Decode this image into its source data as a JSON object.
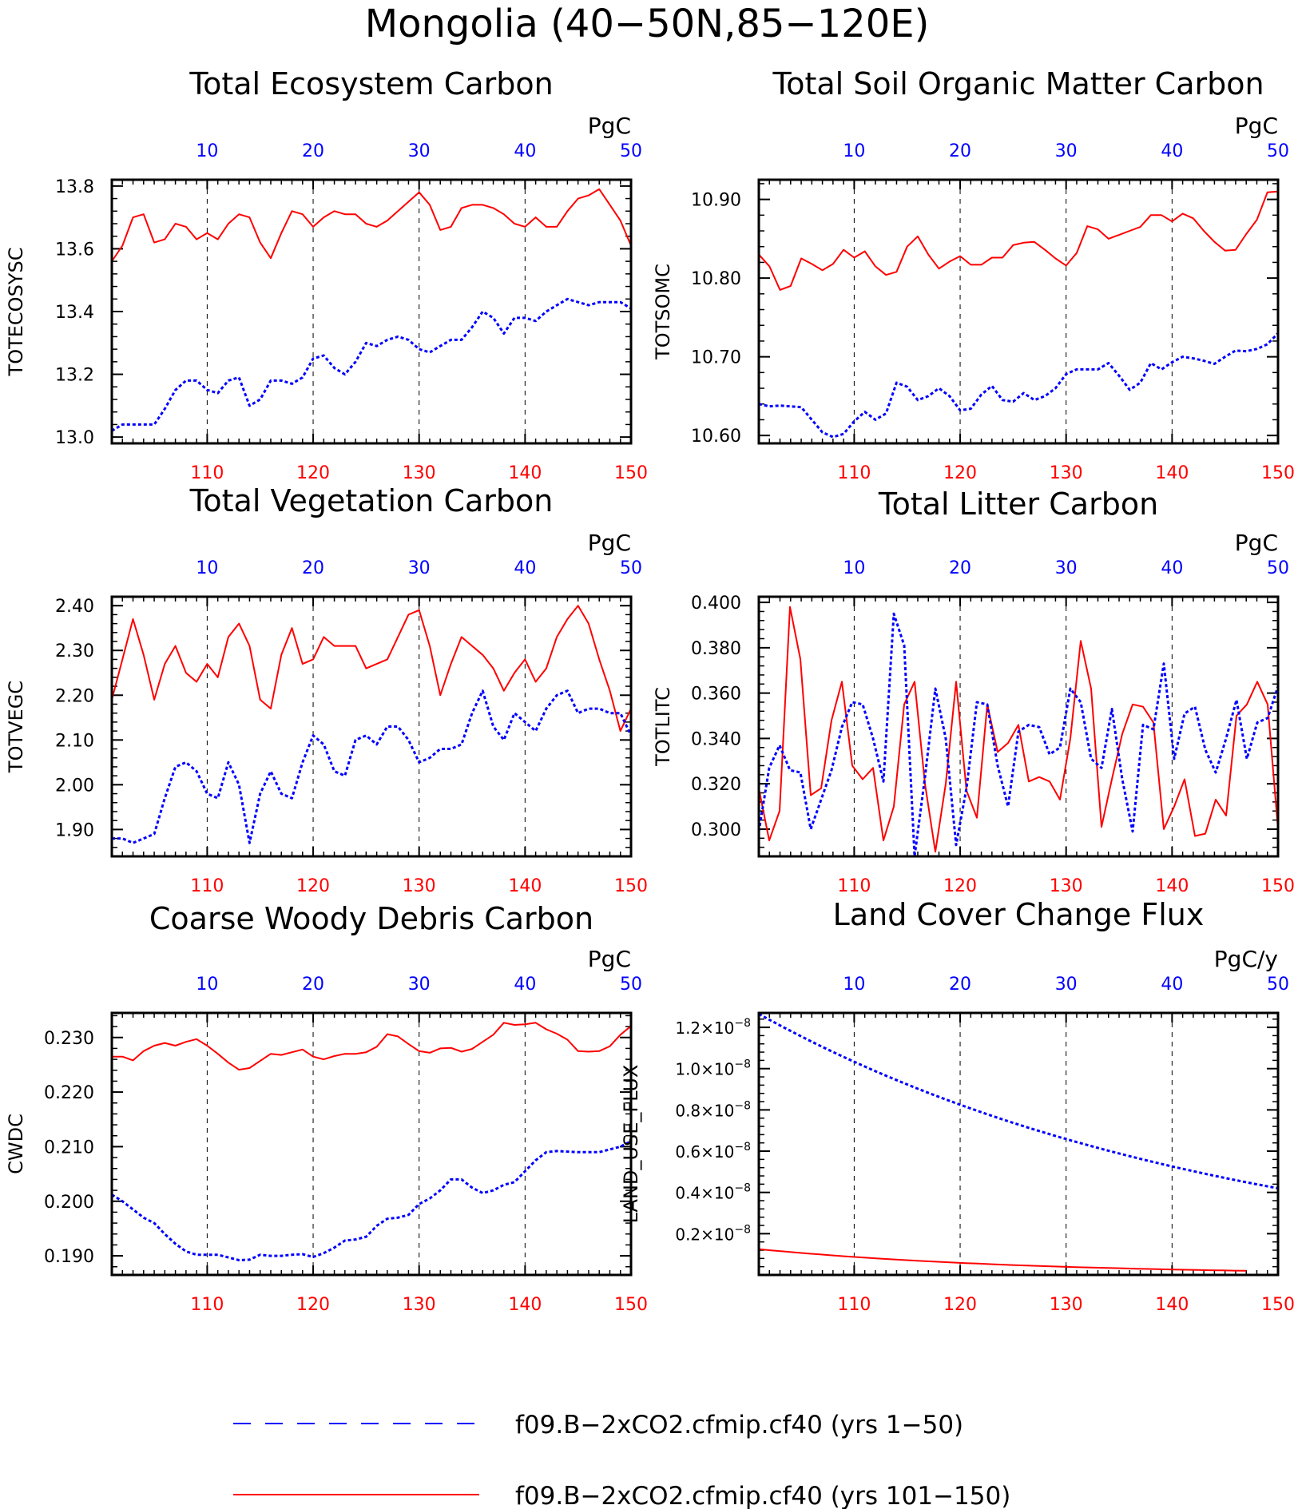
{
  "title": "Mongolia (40−50N,85−120E)",
  "colors": {
    "series_a": "#0000ff",
    "series_b": "#ff0000",
    "axis": "#000000"
  },
  "legend": [
    {
      "label": "f09.B−2xCO2.cfmip.cf40 (yrs 1−50)",
      "color": "#0000ff",
      "style": "dashed"
    },
    {
      "label": "f09.B−2xCO2.cfmip.cf40 (yrs 101−150)",
      "color": "#ff0000",
      "style": "solid"
    }
  ],
  "chart_data": [
    {
      "type": "line",
      "title": "Total Ecosystem Carbon",
      "ylabel": "TOTECOSYSC",
      "units": "PgC",
      "bottom_axis": {
        "range": [
          101,
          150
        ],
        "ticks": [
          "110",
          "120",
          "130",
          "140",
          "150"
        ]
      },
      "top_axis": {
        "range": [
          1,
          50
        ],
        "ticks": [
          "10",
          "20",
          "30",
          "40",
          "50"
        ]
      },
      "ylim": [
        12.98,
        13.82
      ],
      "yticks": [
        "13.0",
        "13.2",
        "13.4",
        "13.6",
        "13.8"
      ],
      "ytick_values": [
        13.0,
        13.2,
        13.4,
        13.6,
        13.8
      ],
      "series": [
        {
          "axis": "bottom",
          "style": "solid",
          "color": "#ff0000",
          "values": [
            13.56,
            13.61,
            13.7,
            13.71,
            13.62,
            13.63,
            13.68,
            13.67,
            13.63,
            13.65,
            13.63,
            13.68,
            13.71,
            13.7,
            13.62,
            13.57,
            13.65,
            13.72,
            13.71,
            13.67,
            13.7,
            13.72,
            13.71,
            13.71,
            13.68,
            13.67,
            13.69,
            13.72,
            13.75,
            13.78,
            13.74,
            13.66,
            13.67,
            13.73,
            13.74,
            13.74,
            13.73,
            13.71,
            13.68,
            13.67,
            13.7,
            13.67,
            13.67,
            13.72,
            13.76,
            13.77,
            13.79,
            13.74,
            13.69,
            13.61
          ]
        },
        {
          "axis": "top",
          "style": "dashed",
          "color": "#0000ff",
          "values": [
            13.02,
            13.04,
            13.04,
            13.04,
            13.04,
            13.09,
            13.15,
            13.18,
            13.18,
            13.15,
            13.14,
            13.18,
            13.19,
            13.1,
            13.12,
            13.18,
            13.18,
            13.17,
            13.19,
            13.25,
            13.26,
            13.22,
            13.2,
            13.24,
            13.3,
            13.29,
            13.31,
            13.32,
            13.31,
            13.28,
            13.27,
            13.29,
            13.31,
            13.31,
            13.35,
            13.4,
            13.38,
            13.33,
            13.38,
            13.38,
            13.37,
            13.4,
            13.42,
            13.44,
            13.43,
            13.42,
            13.43,
            13.43,
            13.43,
            13.41
          ]
        }
      ]
    },
    {
      "type": "line",
      "title": "Total Soil Organic Matter Carbon",
      "ylabel": "TOTSOMC",
      "units": "PgC",
      "bottom_axis": {
        "range": [
          101,
          150
        ],
        "ticks": [
          "110",
          "120",
          "130",
          "140",
          "150"
        ]
      },
      "top_axis": {
        "range": [
          1,
          50
        ],
        "ticks": [
          "10",
          "20",
          "30",
          "40",
          "50"
        ]
      },
      "ylim": [
        10.59,
        10.925
      ],
      "yticks": [
        "10.60",
        "10.70",
        "10.80",
        "10.90"
      ],
      "ytick_values": [
        10.6,
        10.7,
        10.8,
        10.9
      ],
      "series": [
        {
          "axis": "bottom",
          "style": "solid",
          "color": "#ff0000",
          "values": [
            10.83,
            10.815,
            10.785,
            10.79,
            10.825,
            10.818,
            10.81,
            10.818,
            10.836,
            10.826,
            10.834,
            10.815,
            10.804,
            10.808,
            10.84,
            10.853,
            10.83,
            10.812,
            10.821,
            10.828,
            10.817,
            10.817,
            10.826,
            10.826,
            10.842,
            10.845,
            10.846,
            10.836,
            10.825,
            10.816,
            10.832,
            10.866,
            10.862,
            10.85,
            10.855,
            10.86,
            10.865,
            10.88,
            10.88,
            10.872,
            10.882,
            10.876,
            10.86,
            10.846,
            10.835,
            10.836,
            10.856,
            10.874,
            10.909,
            10.91
          ]
        },
        {
          "axis": "top",
          "style": "dashed",
          "color": "#0000ff",
          "values": [
            10.64,
            10.637,
            10.638,
            10.637,
            10.636,
            10.62,
            10.604,
            10.598,
            10.602,
            10.618,
            10.63,
            10.62,
            10.628,
            10.667,
            10.662,
            10.645,
            10.65,
            10.66,
            10.65,
            10.632,
            10.634,
            10.652,
            10.663,
            10.645,
            10.643,
            10.654,
            10.645,
            10.65,
            10.66,
            10.678,
            10.684,
            10.684,
            10.684,
            10.692,
            10.676,
            10.658,
            10.667,
            10.692,
            10.684,
            10.693,
            10.7,
            10.698,
            10.695,
            10.691,
            10.7,
            10.708,
            10.707,
            10.71,
            10.716,
            10.73
          ]
        }
      ]
    },
    {
      "type": "line",
      "title": "Total Vegetation Carbon",
      "ylabel": "TOTVEGC",
      "units": "PgC",
      "bottom_axis": {
        "range": [
          101,
          150
        ],
        "ticks": [
          "110",
          "120",
          "130",
          "140",
          "150"
        ]
      },
      "top_axis": {
        "range": [
          1,
          50
        ],
        "ticks": [
          "10",
          "20",
          "30",
          "40",
          "50"
        ]
      },
      "ylim": [
        1.84,
        2.42
      ],
      "yticks": [
        "1.90",
        "2.00",
        "2.10",
        "2.20",
        "2.30",
        "2.40"
      ],
      "ytick_values": [
        1.9,
        2.0,
        2.1,
        2.2,
        2.3,
        2.4
      ],
      "series": [
        {
          "axis": "bottom",
          "style": "solid",
          "color": "#ff0000",
          "values": [
            2.19,
            2.28,
            2.37,
            2.29,
            2.19,
            2.27,
            2.31,
            2.25,
            2.23,
            2.27,
            2.24,
            2.33,
            2.36,
            2.31,
            2.19,
            2.17,
            2.29,
            2.35,
            2.27,
            2.28,
            2.33,
            2.31,
            2.31,
            2.31,
            2.26,
            2.27,
            2.28,
            2.33,
            2.38,
            2.39,
            2.31,
            2.2,
            2.27,
            2.33,
            2.31,
            2.29,
            2.26,
            2.21,
            2.25,
            2.28,
            2.23,
            2.26,
            2.33,
            2.37,
            2.4,
            2.36,
            2.28,
            2.21,
            2.12,
            2.17
          ]
        },
        {
          "axis": "top",
          "style": "dashed",
          "color": "#0000ff",
          "values": [
            1.88,
            1.88,
            1.87,
            1.88,
            1.89,
            1.97,
            2.04,
            2.05,
            2.03,
            1.98,
            1.97,
            2.05,
            2.0,
            1.87,
            1.98,
            2.03,
            1.98,
            1.97,
            2.05,
            2.11,
            2.09,
            2.03,
            2.02,
            2.1,
            2.11,
            2.09,
            2.13,
            2.13,
            2.1,
            2.05,
            2.06,
            2.08,
            2.08,
            2.09,
            2.16,
            2.21,
            2.13,
            2.1,
            2.16,
            2.14,
            2.12,
            2.17,
            2.2,
            2.21,
            2.16,
            2.17,
            2.17,
            2.16,
            2.16,
            2.11
          ]
        }
      ]
    },
    {
      "type": "line",
      "title": "Total Litter Carbon",
      "ylabel": "TOTLITC",
      "units": "PgC",
      "bottom_axis": {
        "range": [
          101,
          150
        ],
        "ticks": [
          "110",
          "120",
          "130",
          "140",
          "150"
        ]
      },
      "top_axis": {
        "range": [
          1,
          50
        ],
        "ticks": [
          "10",
          "20",
          "30",
          "40",
          "50"
        ]
      },
      "ylim": [
        0.288,
        0.4025
      ],
      "yticks": [
        "0.300",
        "0.320",
        "0.340",
        "0.360",
        "0.380",
        "0.400"
      ],
      "ytick_values": [
        0.3,
        0.32,
        0.34,
        0.36,
        0.38,
        0.4
      ],
      "series": [
        {
          "axis": "bottom",
          "style": "solid",
          "color": "#ff0000",
          "values": [
            0.318,
            0.295,
            0.308,
            0.398,
            0.375,
            0.315,
            0.318,
            0.348,
            0.365,
            0.328,
            0.322,
            0.327,
            0.295,
            0.31,
            0.355,
            0.365,
            0.32,
            0.29,
            0.32,
            0.365,
            0.317,
            0.305,
            0.355,
            0.334,
            0.338,
            0.346,
            0.321,
            0.323,
            0.321,
            0.313,
            0.34,
            0.383,
            0.362,
            0.301,
            0.322,
            0.342,
            0.355,
            0.354,
            0.347,
            0.3,
            0.31,
            0.322,
            0.297,
            0.298,
            0.313,
            0.306,
            0.35,
            0.355,
            0.365,
            0.355,
            0.3
          ]
        },
        {
          "axis": "top",
          "style": "dashed",
          "color": "#0000ff",
          "values": [
            0.299,
            0.327,
            0.337,
            0.326,
            0.325,
            0.3,
            0.313,
            0.326,
            0.345,
            0.356,
            0.355,
            0.34,
            0.321,
            0.395,
            0.381,
            0.288,
            0.323,
            0.362,
            0.34,
            0.293,
            0.318,
            0.356,
            0.355,
            0.328,
            0.31,
            0.343,
            0.346,
            0.345,
            0.333,
            0.336,
            0.362,
            0.356,
            0.331,
            0.327,
            0.353,
            0.322,
            0.299,
            0.346,
            0.344,
            0.373,
            0.331,
            0.351,
            0.354,
            0.335,
            0.325,
            0.34,
            0.357,
            0.331,
            0.347,
            0.349,
            0.363
          ]
        }
      ]
    },
    {
      "type": "line",
      "title": "Coarse Woody Debris Carbon",
      "ylabel": "CWDC",
      "units": "PgC",
      "bottom_axis": {
        "range": [
          101,
          150
        ],
        "ticks": [
          "110",
          "120",
          "130",
          "140",
          "150"
        ]
      },
      "top_axis": {
        "range": [
          1,
          50
        ],
        "ticks": [
          "10",
          "20",
          "30",
          "40",
          "50"
        ]
      },
      "ylim": [
        0.1865,
        0.2345
      ],
      "yticks": [
        "0.190",
        "0.200",
        "0.210",
        "0.220",
        "0.230"
      ],
      "ytick_values": [
        0.19,
        0.2,
        0.21,
        0.22,
        0.23
      ],
      "series": [
        {
          "axis": "bottom",
          "style": "solid",
          "color": "#ff0000",
          "values": [
            0.2265,
            0.2265,
            0.2258,
            0.2275,
            0.2285,
            0.229,
            0.2285,
            0.2292,
            0.2297,
            0.2285,
            0.227,
            0.2254,
            0.2241,
            0.2244,
            0.2257,
            0.227,
            0.2268,
            0.2273,
            0.2278,
            0.2265,
            0.226,
            0.2266,
            0.227,
            0.227,
            0.2273,
            0.2283,
            0.2306,
            0.2302,
            0.2288,
            0.2275,
            0.2272,
            0.228,
            0.2281,
            0.2274,
            0.2279,
            0.2292,
            0.2305,
            0.2327,
            0.2323,
            0.2324,
            0.2327,
            0.2315,
            0.2307,
            0.2296,
            0.2275,
            0.2274,
            0.2275,
            0.2284,
            0.2305,
            0.2321
          ]
        },
        {
          "axis": "top",
          "style": "dashed",
          "color": "#0000ff",
          "values": [
            0.2012,
            0.2,
            0.1985,
            0.197,
            0.196,
            0.194,
            0.1922,
            0.1908,
            0.1902,
            0.1902,
            0.1902,
            0.1897,
            0.1892,
            0.1893,
            0.1902,
            0.19,
            0.19,
            0.1902,
            0.1903,
            0.1898,
            0.1905,
            0.1915,
            0.1928,
            0.193,
            0.1935,
            0.1955,
            0.1968,
            0.197,
            0.1975,
            0.1995,
            0.2005,
            0.202,
            0.204,
            0.204,
            0.2025,
            0.2015,
            0.202,
            0.203,
            0.2035,
            0.2055,
            0.2075,
            0.209,
            0.2092,
            0.2091,
            0.209,
            0.209,
            0.209,
            0.2095,
            0.21,
            0.211
          ]
        }
      ]
    },
    {
      "type": "line",
      "title": "Land Cover Change Flux",
      "ylabel": "LAND_USE_FLUX",
      "units": "PgC/y",
      "bottom_axis": {
        "range": [
          101,
          150
        ],
        "ticks": [
          "110",
          "120",
          "130",
          "140",
          "150"
        ]
      },
      "top_axis": {
        "range": [
          1,
          50
        ],
        "ticks": [
          "10",
          "20",
          "30",
          "40",
          "50"
        ]
      },
      "ylim": [
        0.0,
        1.27
      ],
      "yscale_label": "×10⁻⁸",
      "yticks": [
        "0.2×10⁻⁸",
        "0.4×10⁻⁸",
        "0.6×10⁻⁸",
        "0.8×10⁻⁸",
        "1.0×10⁻⁸",
        "1.2×10⁻⁸"
      ],
      "ytick_values": [
        0.2,
        0.4,
        0.6,
        0.8,
        1.0,
        1.2
      ],
      "series": [
        {
          "axis": "bottom",
          "style": "solid",
          "color": "#ff0000",
          "x_start": 101,
          "x_end": 147,
          "y_start": 0.125,
          "y_end": 0.02
        },
        {
          "axis": "top",
          "style": "dashed",
          "color": "#0000ff",
          "x_start": 1,
          "x_end": 50,
          "y_start": 1.265,
          "y_end": 0.42
        }
      ]
    }
  ]
}
